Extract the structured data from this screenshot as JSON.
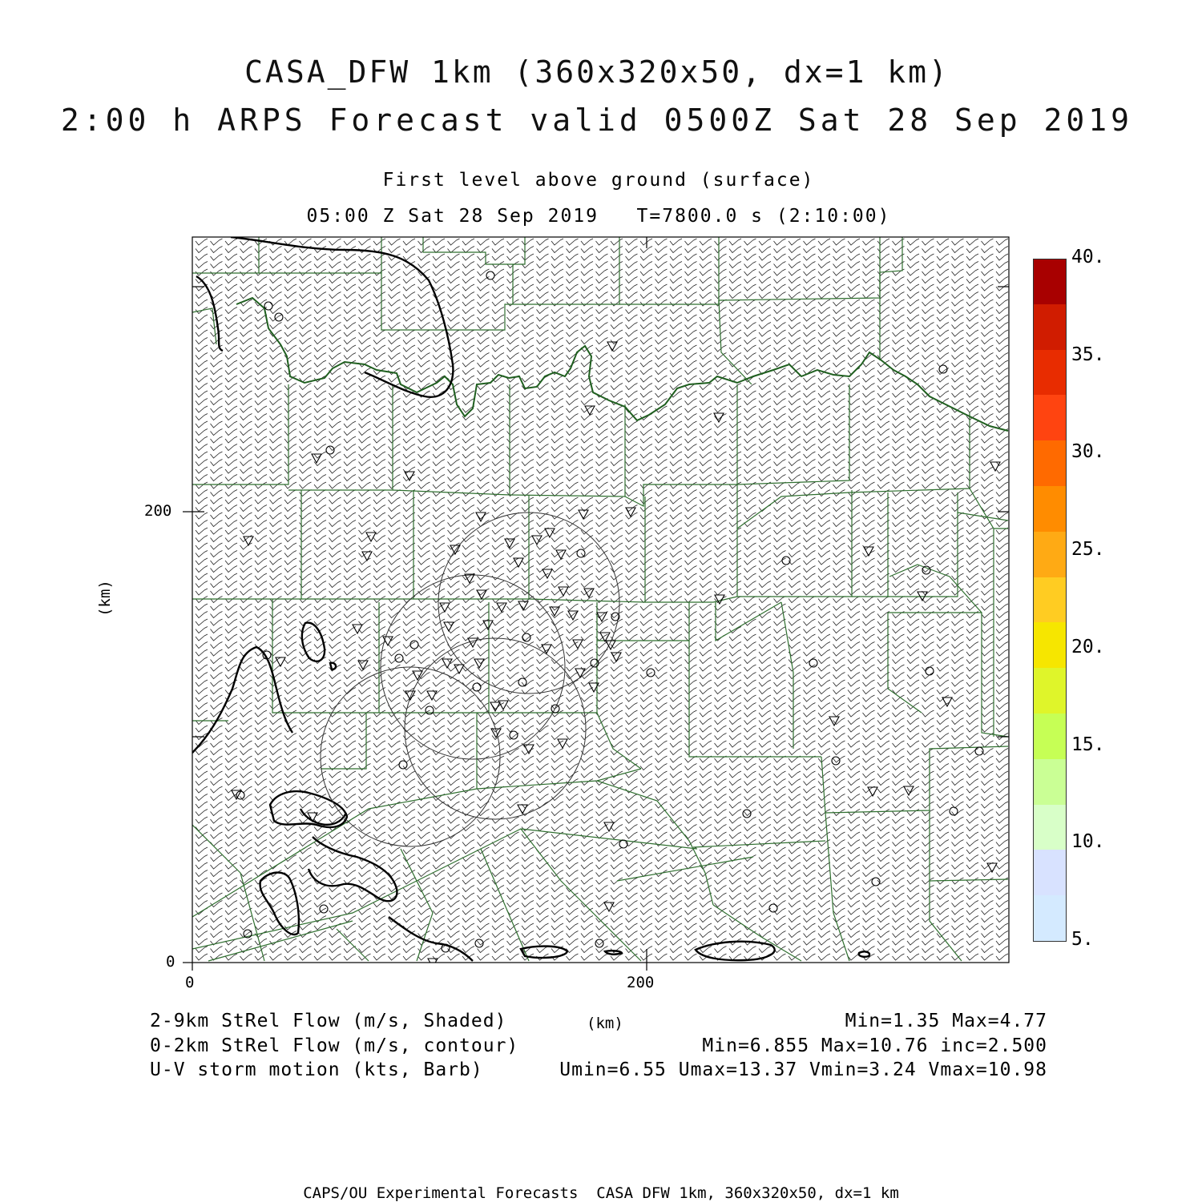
{
  "header": {
    "title_line1": "CASA_DFW 1km (360x320x50, dx=1 km)",
    "title_line2": "2:00 h ARPS Forecast valid 0500Z Sat 28 Sep 2019",
    "subtitle_level": "First level above ground (surface)",
    "subtitle_time": "05:00 Z Sat 28 Sep 2019   T=7800.0 s (2:10:00)"
  },
  "axes": {
    "x_ticks": [
      "0",
      "200"
    ],
    "y_ticks": [
      "0",
      "200"
    ],
    "x_unit": "(km)",
    "y_unit": "(km)"
  },
  "colorbar": {
    "labels": [
      "40.",
      "35.",
      "30.",
      "25.",
      "20.",
      "15.",
      "10.",
      "5."
    ],
    "colors": [
      "#a80000",
      "#d01c00",
      "#e82c00",
      "#ff4410",
      "#ff6a00",
      "#ff8c00",
      "#ffaa14",
      "#ffcc22",
      "#f6e600",
      "#dff52a",
      "#c6ff55",
      "#caff95",
      "#d8ffc8",
      "#d8e2ff",
      "#d4eaff"
    ]
  },
  "legend": {
    "shaded": "2-9km StRel Flow (m/s, Shaded)",
    "contour": "0-2km StRel Flow (m/s, contour)",
    "barb": "U-V storm motion (kts, Barb)",
    "shaded_stats": "Min=1.35 Max=4.77",
    "contour_stats": "Min=6.855 Max=10.76 inc=2.500",
    "barb_stats": "Umin=6.55 Umax=13.37 Vmin=3.24 Vmax=10.98"
  },
  "footer": "CAPS/OU Experimental Forecasts  CASA DFW 1km, 360x320x50, dx=1 km",
  "style": {
    "county_color": "#2f6f2f",
    "river_color": "#1f5f1f",
    "contour_color": "#000000"
  }
}
